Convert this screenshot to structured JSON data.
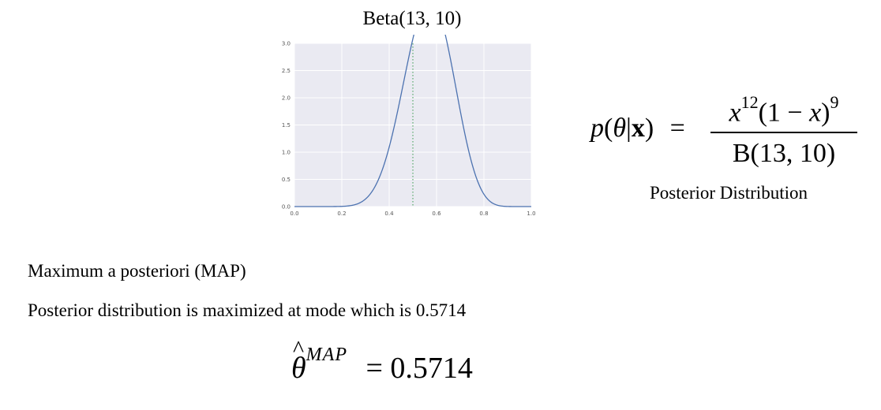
{
  "chart_data": {
    "type": "line",
    "title": "Beta(13, 10)",
    "xlabel": "",
    "ylabel": "",
    "xlim": [
      0.0,
      1.0
    ],
    "ylim": [
      0.0,
      3.0
    ],
    "x_ticks": [
      "0.0",
      "0.2",
      "0.4",
      "0.6",
      "0.8",
      "1.0"
    ],
    "y_ticks": [
      "0.0",
      "0.5",
      "1.0",
      "1.5",
      "2.0",
      "2.5",
      "3.0"
    ],
    "grid": true,
    "series": [
      {
        "distribution": "Beta",
        "alpha": 13,
        "beta": 10,
        "color": "#4c72b0",
        "x": [
          0.0,
          0.1,
          0.2,
          0.3,
          0.35,
          0.4,
          0.45,
          0.5,
          0.55,
          0.5714,
          0.6,
          0.65,
          0.7,
          0.75,
          0.8,
          0.85,
          0.9,
          1.0
        ],
        "y": [
          0.0,
          0.0,
          0.01,
          0.19,
          0.48,
          0.98,
          1.64,
          2.27,
          2.67,
          2.79,
          2.68,
          2.24,
          1.55,
          0.86,
          0.36,
          0.1,
          0.02,
          0.0
        ]
      }
    ],
    "annotations": [
      {
        "type": "vline",
        "x": 0.5,
        "style": "dotted",
        "color": "#55a868"
      }
    ]
  },
  "formula": {
    "lhs_p": "p",
    "lhs_open": "(",
    "lhs_theta": "θ",
    "lhs_bar": "|",
    "lhs_x": "x",
    "lhs_close": ")",
    "equals": "=",
    "num_x": "x",
    "num_exp1": "12",
    "num_paren_open": "(1 − ",
    "num_x2": "x",
    "num_paren_close": ")",
    "num_exp2": "9",
    "denominator": "B(13, 10)"
  },
  "posterior_label": "Posterior Distribution",
  "map": {
    "heading": "Maximum a posteriori (MAP)",
    "description": "Posterior distribution is maximized at mode which is 0.5714",
    "theta": "θ",
    "hat": "^",
    "superscript": "MAP",
    "equals": "=",
    "value": "0.5714"
  }
}
